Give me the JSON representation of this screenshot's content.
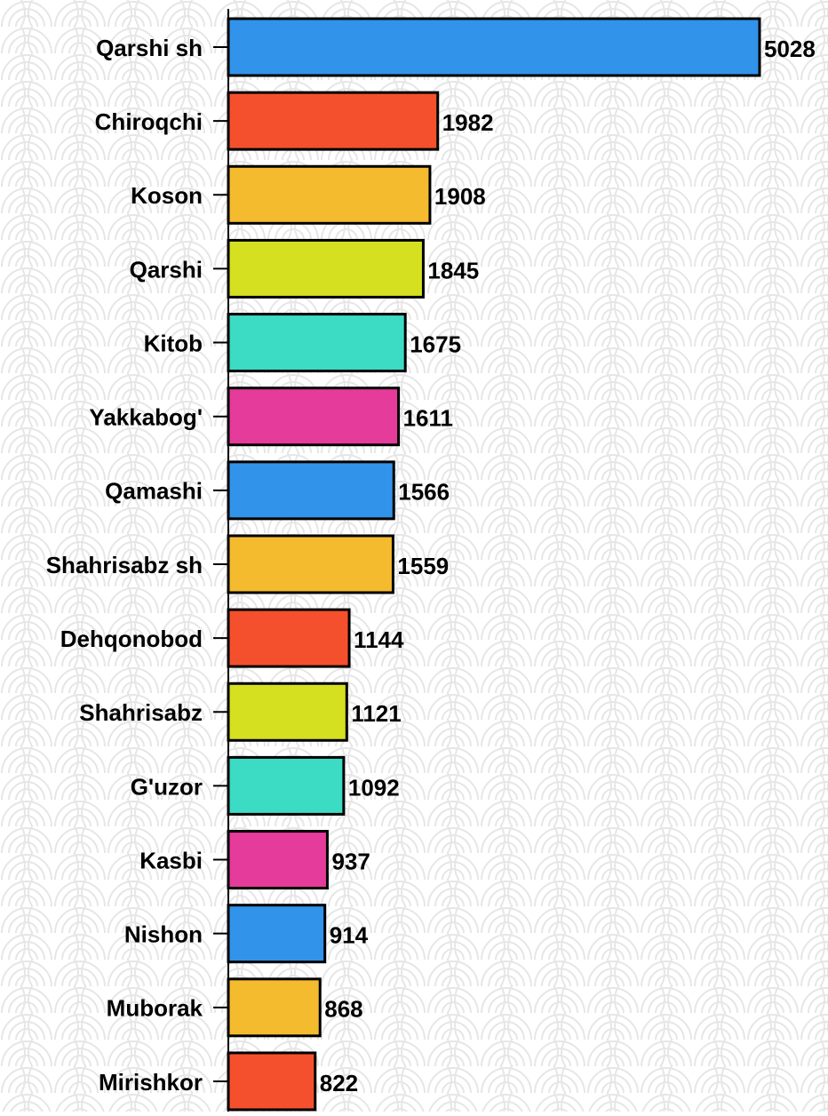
{
  "chart_data": {
    "type": "barh",
    "categories": [
      "Qarshi sh",
      "Chiroqchi",
      "Koson",
      "Qarshi",
      "Kitob",
      "Yakkabog'",
      "Qamashi",
      "Shahrisabz sh",
      "Dehqonobod",
      "Shahrisabz",
      "G'uzor",
      "Kasbi",
      "Nishon",
      "Muborak",
      "Mirishkor"
    ],
    "values": [
      5028,
      1982,
      1908,
      1845,
      1675,
      1611,
      1566,
      1559,
      1144,
      1121,
      1092,
      937,
      914,
      868,
      822
    ],
    "colors": [
      "#3293ea",
      "#f5502d",
      "#f5bb2e",
      "#d5e020",
      "#3cdbc4",
      "#e53b9a",
      "#3293ea",
      "#f5bb2e",
      "#f5502d",
      "#d5e020",
      "#3cdbc4",
      "#e53b9a",
      "#3293ea",
      "#f5bb2e",
      "#f5502d"
    ]
  }
}
